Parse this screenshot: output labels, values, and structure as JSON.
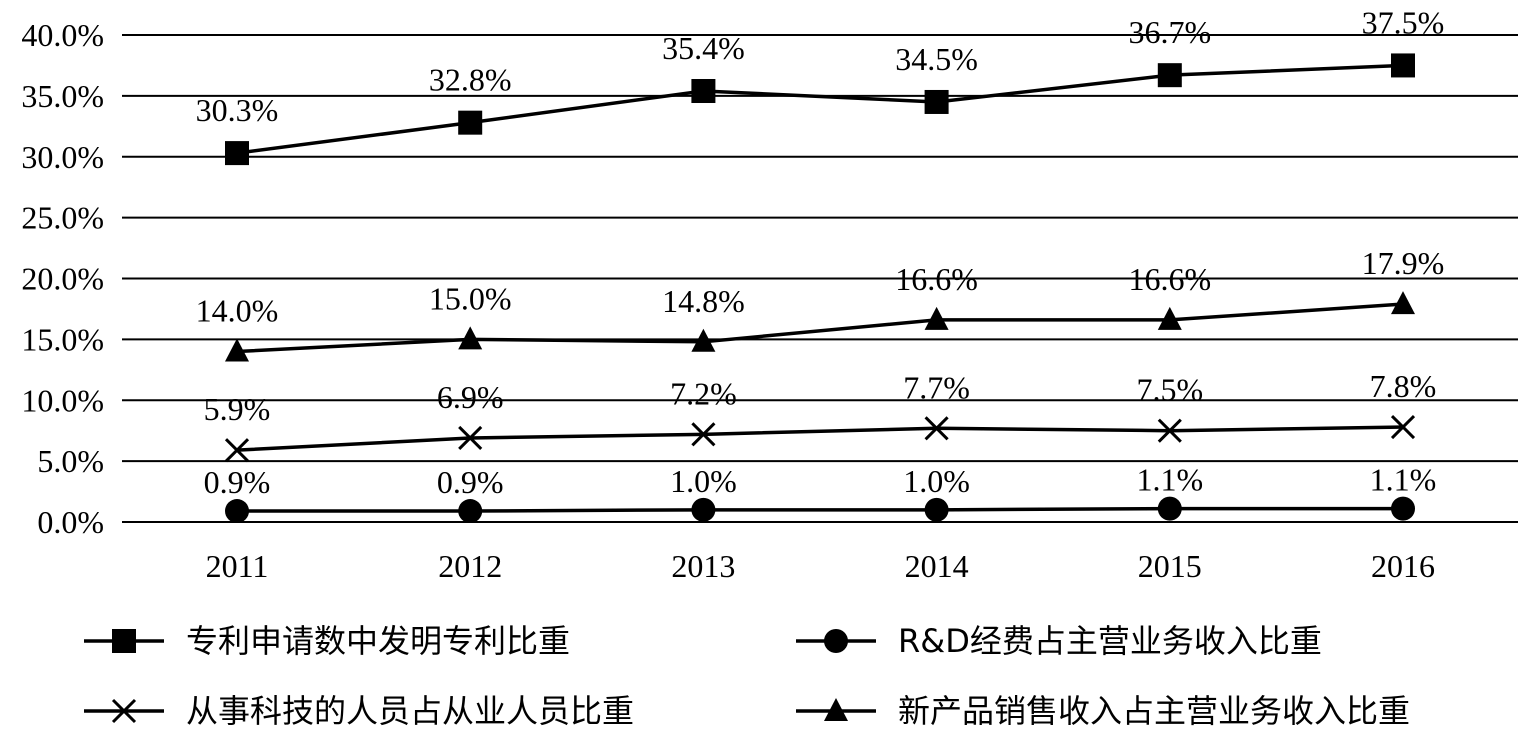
{
  "chart_data": {
    "type": "line",
    "categories": [
      "2011",
      "2012",
      "2013",
      "2014",
      "2015",
      "2016"
    ],
    "ylim": [
      0,
      40
    ],
    "yticks": [
      0,
      5,
      10,
      15,
      20,
      25,
      30,
      35,
      40
    ],
    "ytick_labels": [
      "0.0%",
      "5.0%",
      "10.0%",
      "15.0%",
      "20.0%",
      "25.0%",
      "30.0%",
      "35.0%",
      "40.0%"
    ],
    "grid": true,
    "legend_position": "bottom",
    "series": [
      {
        "name": "专利申请数中发明专利比重",
        "marker": "square",
        "values": [
          30.3,
          32.8,
          35.4,
          34.5,
          36.7,
          37.5
        ],
        "labels": [
          "30.3%",
          "32.8%",
          "35.4%",
          "34.5%",
          "36.7%",
          "37.5%"
        ]
      },
      {
        "name": "R&D经费占主营业务收入比重",
        "marker": "circle",
        "values": [
          0.9,
          0.9,
          1.0,
          1.0,
          1.1,
          1.1
        ],
        "labels": [
          "0.9%",
          "0.9%",
          "1.0%",
          "1.0%",
          "1.1%",
          "1.1%"
        ]
      },
      {
        "name": "从事科技的人员占从业人员比重",
        "marker": "x",
        "values": [
          5.9,
          6.9,
          7.2,
          7.7,
          7.5,
          7.8
        ],
        "labels": [
          "5.9%",
          "6.9%",
          "7.2%",
          "7.7%",
          "7.5%",
          "7.8%"
        ]
      },
      {
        "name": "新产品销售收入占主营业务收入比重",
        "marker": "triangle",
        "values": [
          14.0,
          15.0,
          14.8,
          16.6,
          16.6,
          17.9
        ],
        "labels": [
          "14.0%",
          "15.0%",
          "14.8%",
          "16.6%",
          "16.6%",
          "17.9%"
        ]
      }
    ]
  }
}
